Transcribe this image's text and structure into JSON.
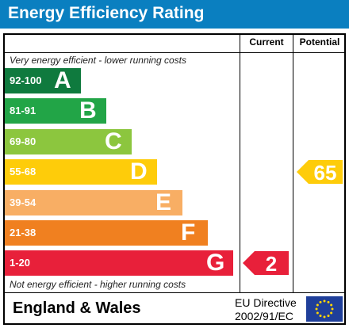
{
  "title": "Energy Efficiency Rating",
  "columns": {
    "current": "Current",
    "potential": "Potential"
  },
  "notes": {
    "top": "Very energy efficient - lower running costs",
    "bottom": "Not energy efficient - higher running costs"
  },
  "footer": {
    "country": "England & Wales",
    "directive_line1": "EU Directive",
    "directive_line2": "2002/91/EC",
    "flag_icon": "eu-flag-icon"
  },
  "chart_data": {
    "type": "bar",
    "title": "Energy Efficiency Rating",
    "bands": [
      {
        "letter": "A",
        "range": "92-100",
        "color": "#0f7a3e"
      },
      {
        "letter": "B",
        "range": "81-91",
        "color": "#22a547"
      },
      {
        "letter": "C",
        "range": "69-80",
        "color": "#8cc63e"
      },
      {
        "letter": "D",
        "range": "55-68",
        "color": "#fecc0a"
      },
      {
        "letter": "E",
        "range": "39-54",
        "color": "#f8ae64"
      },
      {
        "letter": "F",
        "range": "21-38",
        "color": "#f08020"
      },
      {
        "letter": "G",
        "range": "1-20",
        "color": "#e8203a"
      }
    ],
    "current": {
      "value": 2,
      "band": "G",
      "color": "#e8203a"
    },
    "potential": {
      "value": 65,
      "band": "D",
      "color": "#fecc0a"
    }
  }
}
